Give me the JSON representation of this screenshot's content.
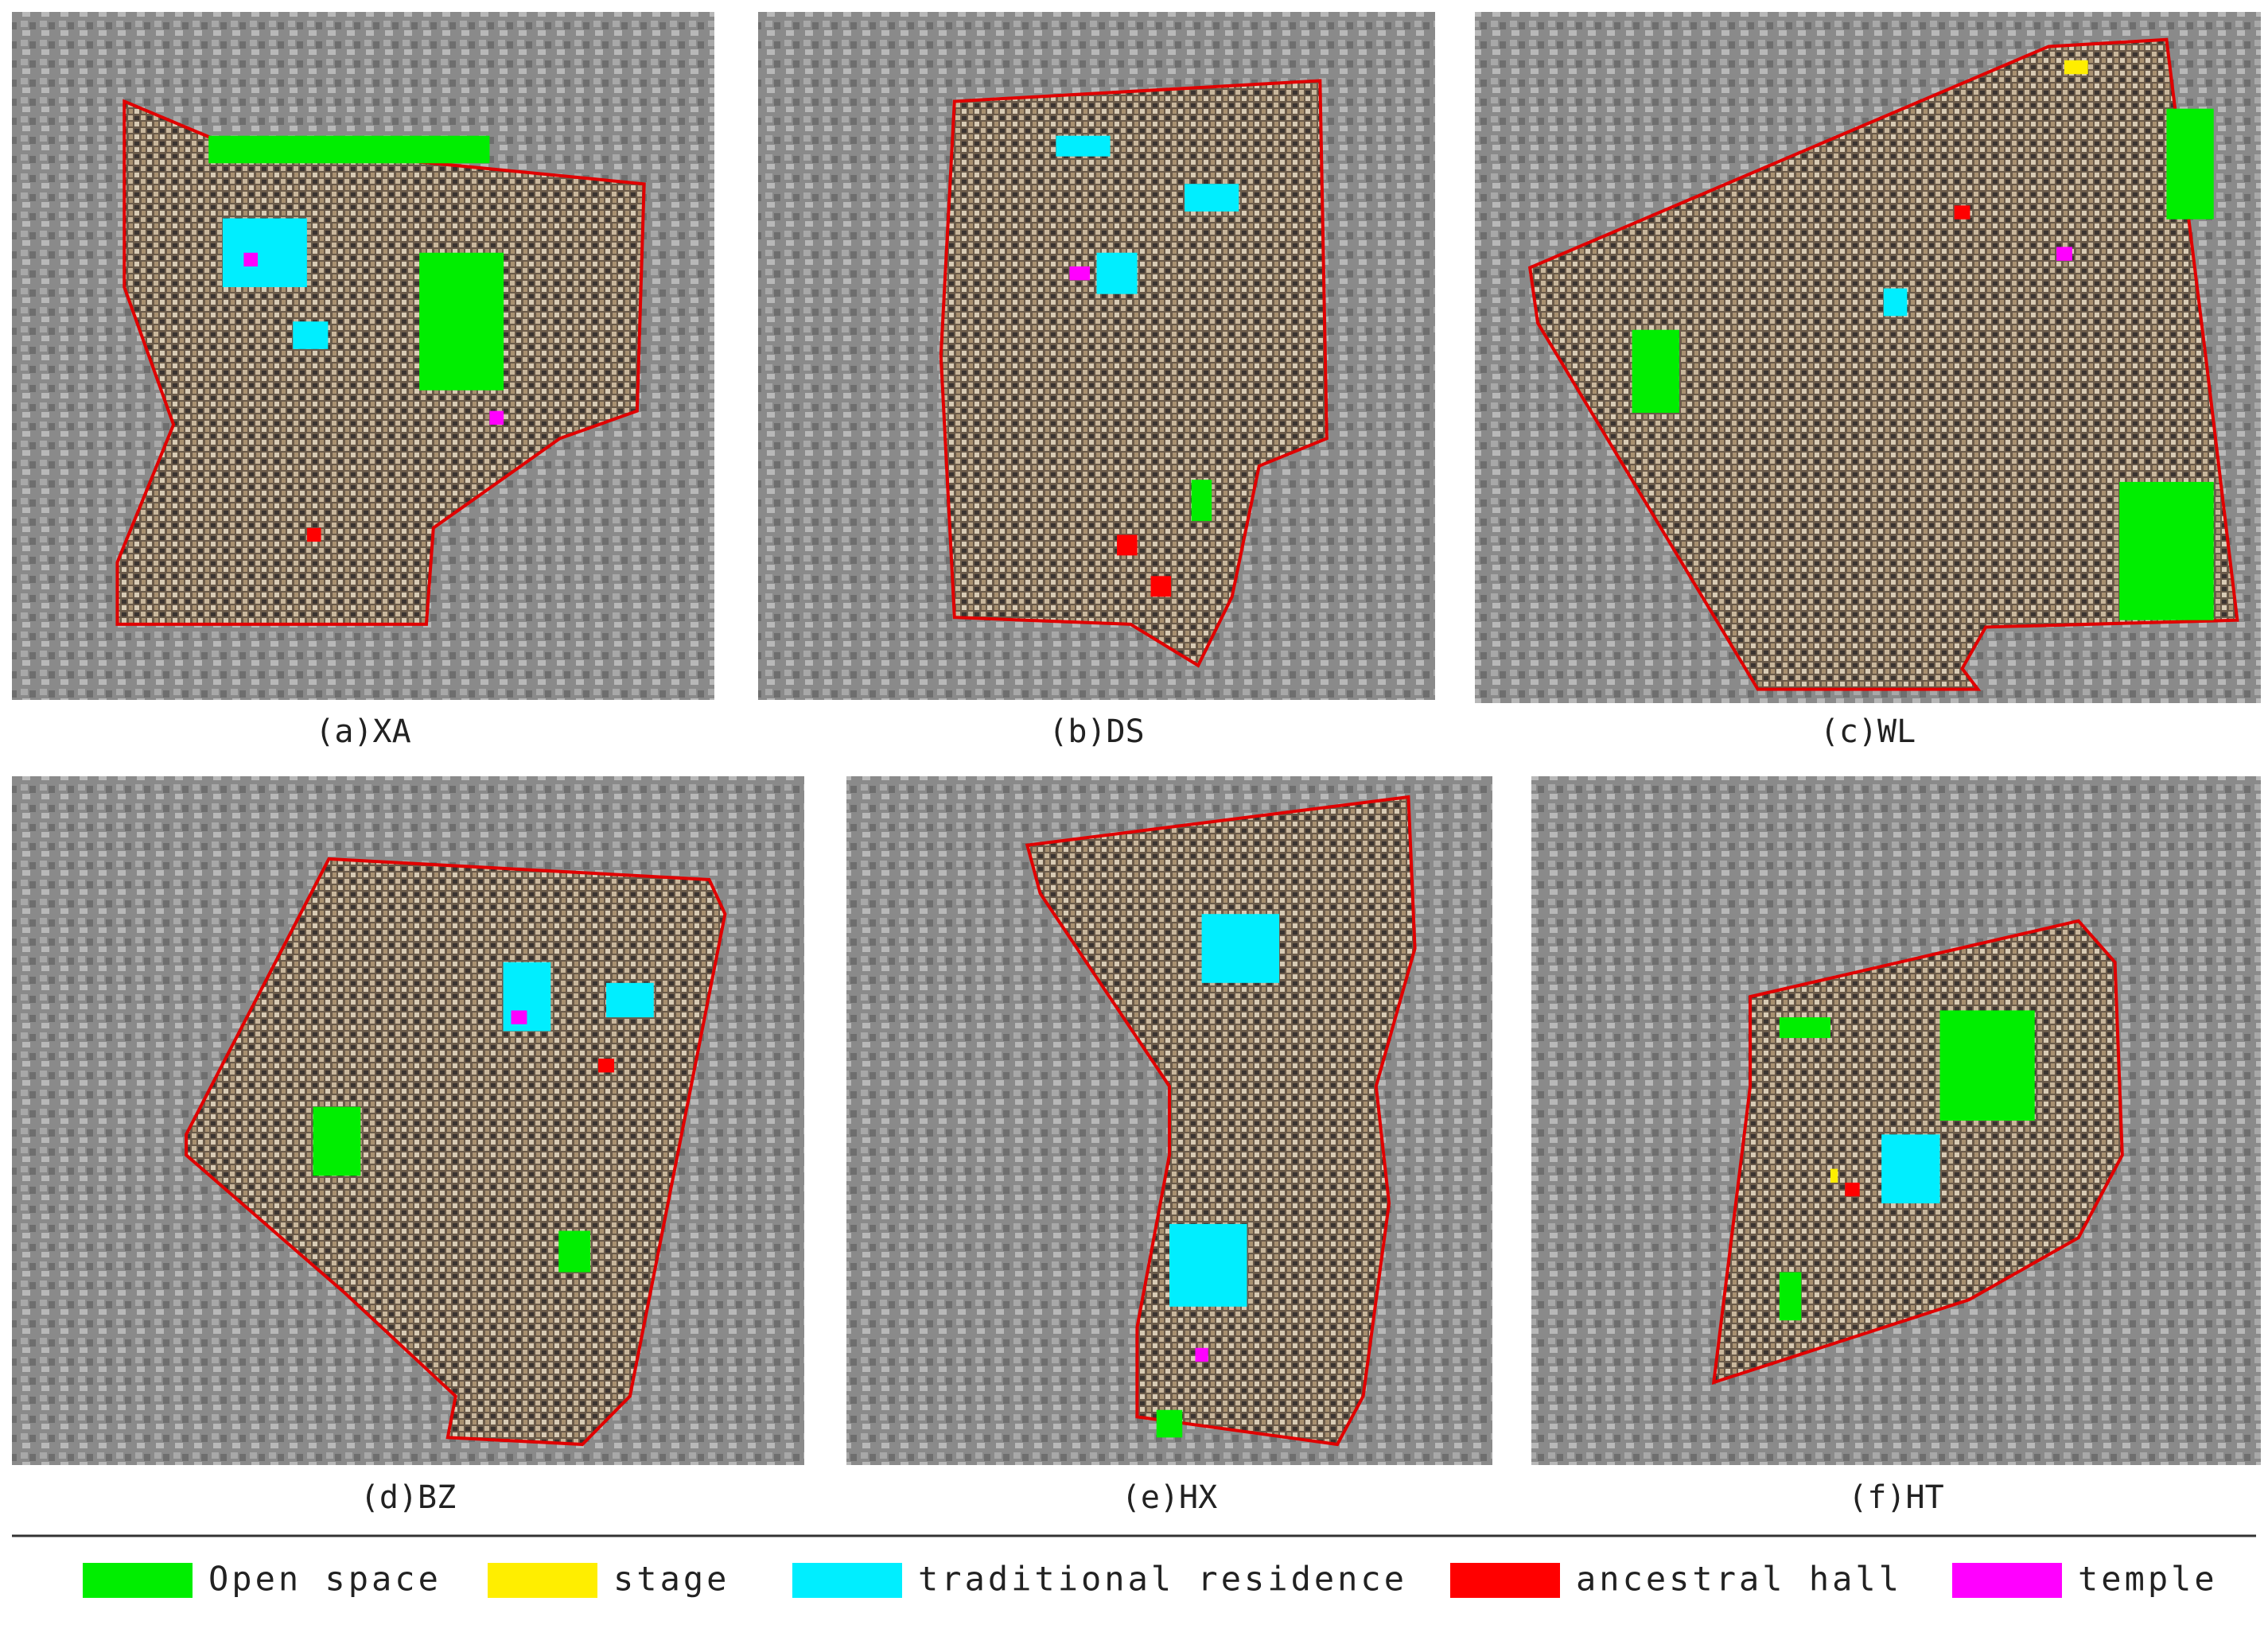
{
  "panels": [
    {
      "label": "(a)XA"
    },
    {
      "label": "(b)DS"
    },
    {
      "label": "(c)WL"
    },
    {
      "label": "(d)BZ"
    },
    {
      "label": "(e)HX"
    },
    {
      "label": "(f)HT"
    }
  ],
  "legend": [
    {
      "label": "Open space",
      "color": "#00ee00"
    },
    {
      "label": "stage",
      "color": "#ffee00"
    },
    {
      "label": "traditional residence",
      "color": "#00eeff"
    },
    {
      "label": "ancestral hall",
      "color": "#ff0000"
    },
    {
      "label": "temple",
      "color": "#ff00ff"
    }
  ]
}
